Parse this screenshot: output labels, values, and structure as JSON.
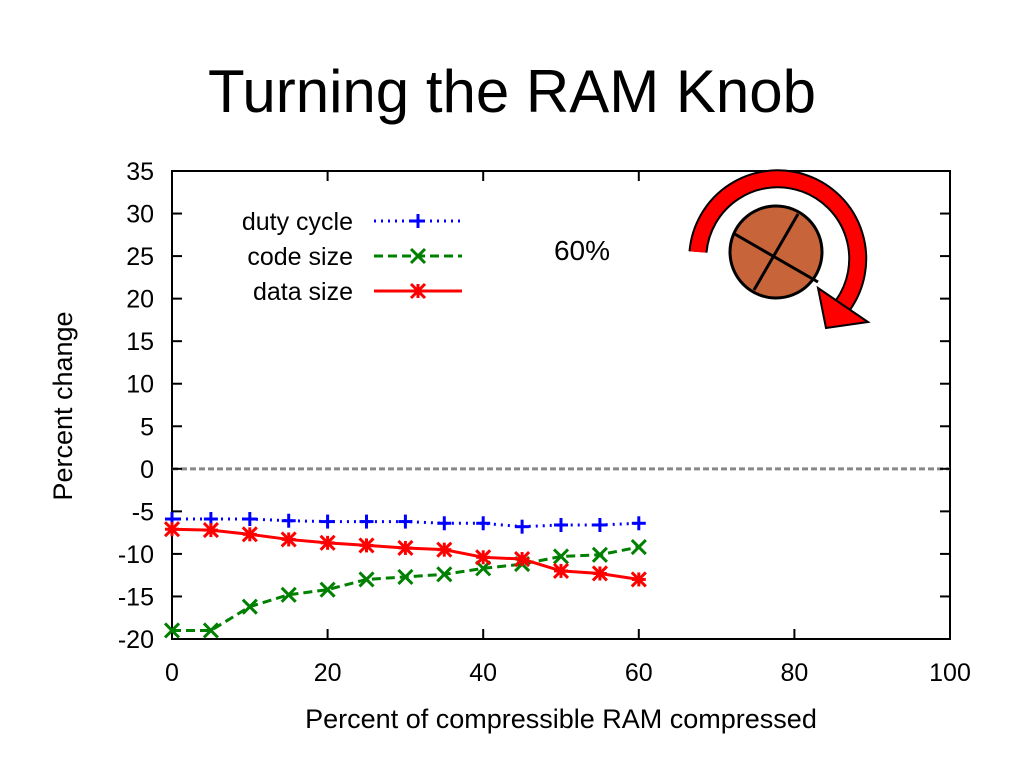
{
  "slide": {
    "title": "Turning the RAM Knob",
    "knob_label": "60%"
  },
  "colors": {
    "duty_cycle": "#0000ff",
    "code_size": "#008000",
    "data_size": "#ff0000",
    "zero_line": "#888888",
    "knob_fill": "#c8643a",
    "arrow": "#ff0000"
  },
  "icons": {
    "knob": "knob-icon",
    "rotation_arrow": "rotation-arrow-icon"
  },
  "chart_data": {
    "type": "line",
    "title": "",
    "xlabel": "Percent of compressible RAM compressed",
    "ylabel": "Percent change",
    "xlim": [
      0,
      100
    ],
    "ylim": [
      -20,
      35
    ],
    "xticks": [
      0,
      20,
      40,
      60,
      80,
      100
    ],
    "yticks": [
      35,
      30,
      25,
      20,
      15,
      10,
      5,
      0,
      -5,
      -10,
      -15,
      -20
    ],
    "grid": false,
    "legend_position": "top-left",
    "zero_reference_line": true,
    "x": [
      0,
      5,
      10,
      15,
      20,
      25,
      30,
      35,
      40,
      45,
      50,
      55,
      60
    ],
    "series": [
      {
        "name": "duty cycle",
        "style": "dotted",
        "marker": "plus",
        "values": [
          -5.9,
          -5.9,
          -5.9,
          -6.1,
          -6.2,
          -6.2,
          -6.2,
          -6.4,
          -6.4,
          -6.8,
          -6.6,
          -6.6,
          -6.4
        ]
      },
      {
        "name": "code size",
        "style": "dashed",
        "marker": "x",
        "values": [
          -19.0,
          -19.0,
          -16.2,
          -14.8,
          -14.2,
          -13.0,
          -12.7,
          -12.4,
          -11.7,
          -11.2,
          -10.3,
          -10.1,
          -9.2
        ]
      },
      {
        "name": "data size",
        "style": "solid",
        "marker": "star",
        "values": [
          -7.1,
          -7.2,
          -7.7,
          -8.3,
          -8.7,
          -9.0,
          -9.3,
          -9.5,
          -10.4,
          -10.6,
          -12.0,
          -12.3,
          -13.0
        ]
      }
    ]
  }
}
